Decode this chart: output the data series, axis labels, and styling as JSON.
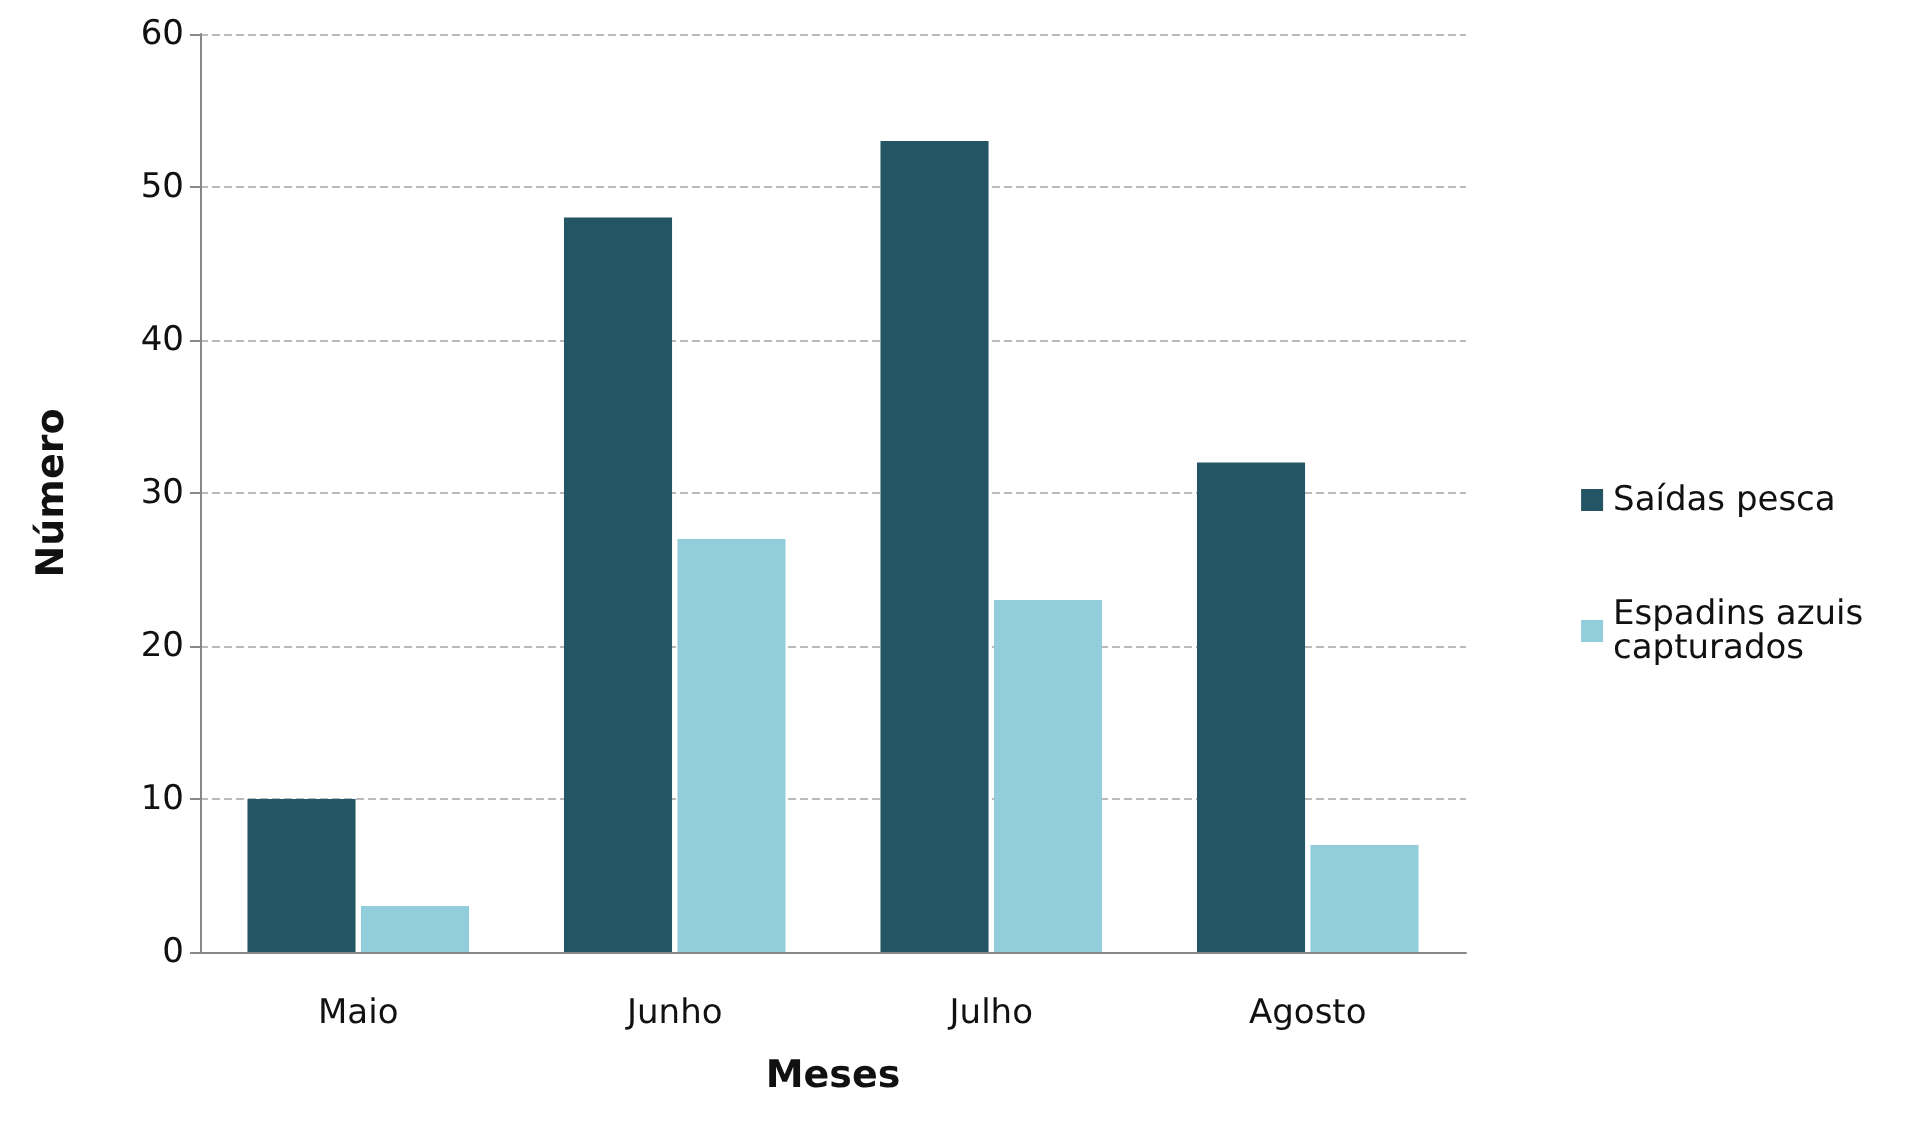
{
  "chart_data": {
    "type": "bar",
    "xlabel": "Meses",
    "ylabel": "Número",
    "categories": [
      "Maio",
      "Junho",
      "Julho",
      "Agosto"
    ],
    "series": [
      {
        "name": "Saídas pesca",
        "color": "#235564",
        "values": [
          10,
          48,
          53,
          32
        ]
      },
      {
        "name": "Espadins azuis capturados",
        "color": "#92cddc",
        "values": [
          3,
          27,
          23,
          7
        ]
      }
    ],
    "ylim": [
      0,
      60
    ],
    "yticks": [
      0,
      10,
      20,
      30,
      40,
      50,
      60
    ],
    "grid": "y",
    "legend": "right"
  }
}
